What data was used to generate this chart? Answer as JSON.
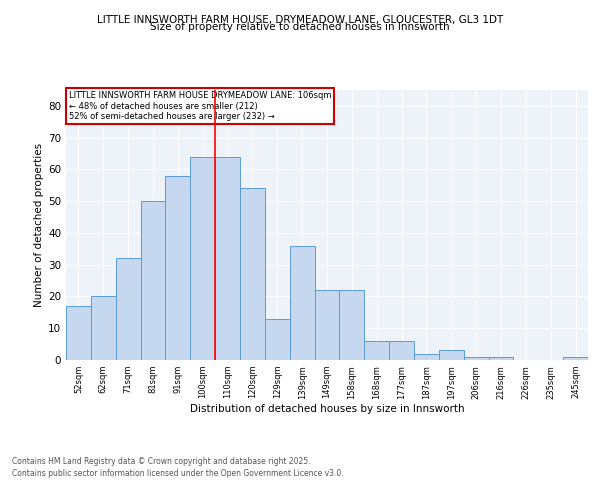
{
  "title_line1": "LITTLE INNSWORTH FARM HOUSE, DRYMEADOW LANE, GLOUCESTER, GL3 1DT",
  "title_line2": "Size of property relative to detached houses in Innsworth",
  "xlabel": "Distribution of detached houses by size in Innsworth",
  "ylabel": "Number of detached properties",
  "categories": [
    "52sqm",
    "62sqm",
    "71sqm",
    "81sqm",
    "91sqm",
    "100sqm",
    "110sqm",
    "120sqm",
    "129sqm",
    "139sqm",
    "149sqm",
    "158sqm",
    "168sqm",
    "177sqm",
    "187sqm",
    "197sqm",
    "206sqm",
    "216sqm",
    "226sqm",
    "235sqm",
    "245sqm"
  ],
  "values": [
    17,
    20,
    32,
    50,
    58,
    64,
    64,
    54,
    13,
    36,
    22,
    22,
    6,
    6,
    2,
    3,
    1,
    1,
    0,
    0,
    1
  ],
  "bar_color": "#c5d8f0",
  "bar_edge_color": "#5b9bd5",
  "red_line_index": 5,
  "annotation_title": "LITTLE INNSWORTH FARM HOUSE DRYMEADOW LANE: 106sqm",
  "annotation_line2": "← 48% of detached houses are smaller (212)",
  "annotation_line3": "52% of semi-detached houses are larger (232) →",
  "annotation_box_color": "#ffffff",
  "annotation_box_edge": "#cc0000",
  "ylim": [
    0,
    85
  ],
  "yticks": [
    0,
    10,
    20,
    30,
    40,
    50,
    60,
    70,
    80
  ],
  "footer_line1": "Contains HM Land Registry data © Crown copyright and database right 2025.",
  "footer_line2": "Contains public sector information licensed under the Open Government Licence v3.0.",
  "bg_color": "#eef3fa",
  "grid_color": "#ffffff",
  "fig_bg": "#ffffff"
}
